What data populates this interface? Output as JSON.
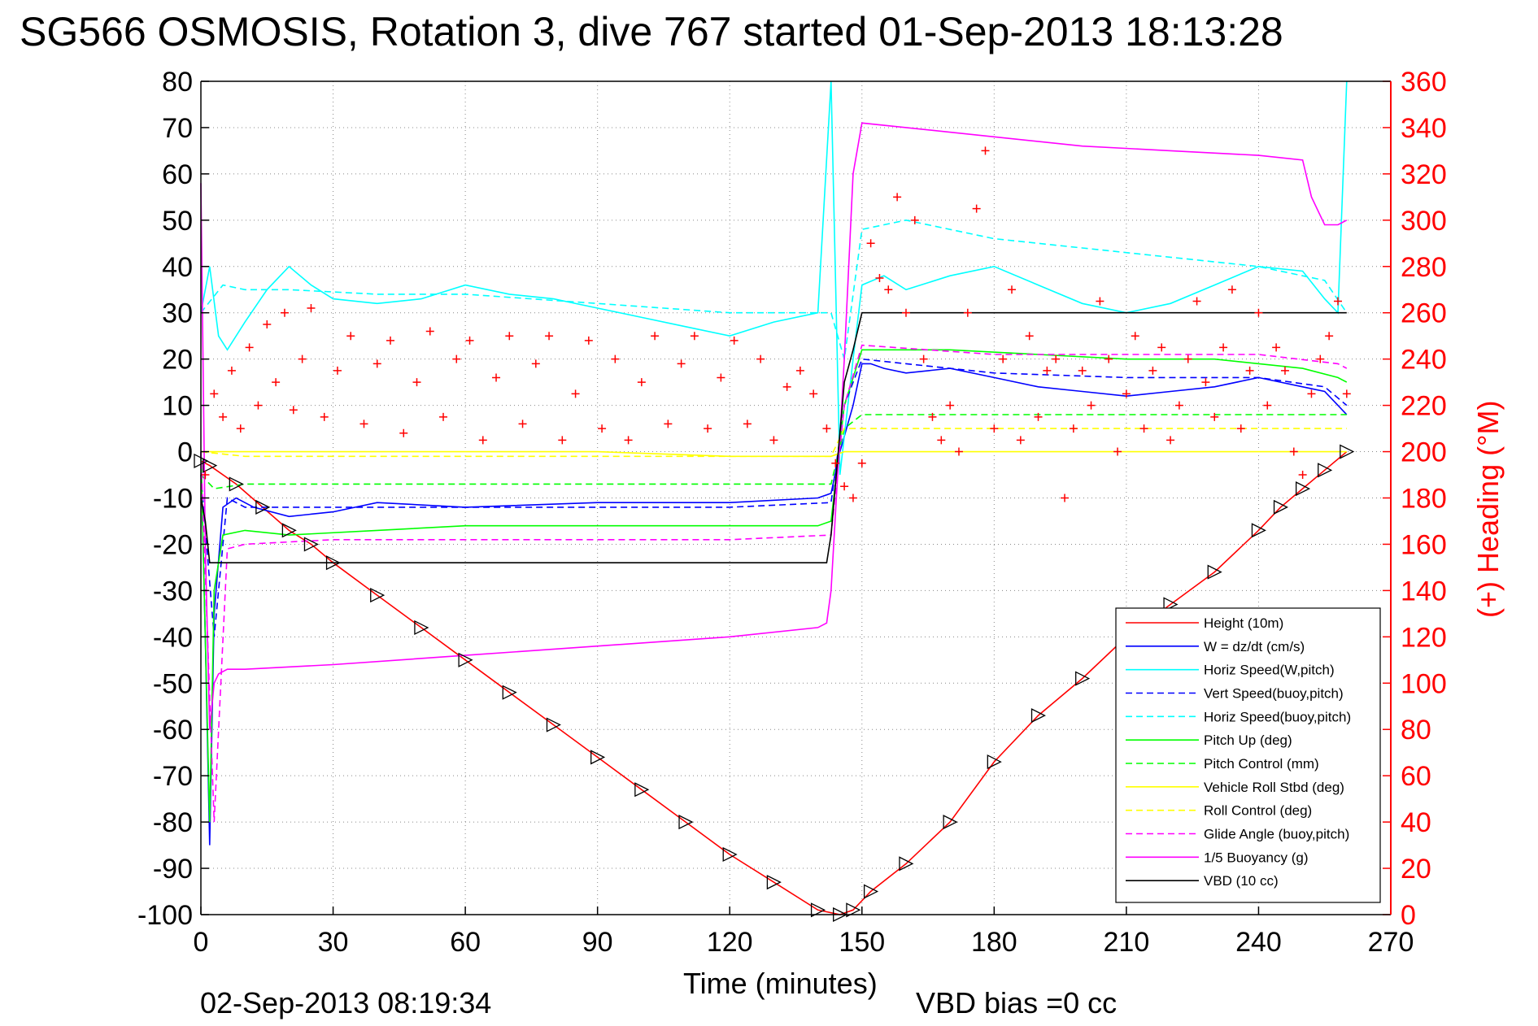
{
  "chart_data": {
    "type": "line",
    "title": "SG566 OSMOSIS, Rotation 3, dive 767 started 01-Sep-2013 18:13:28",
    "xlabel": "Time (minutes)",
    "ylabel_right": "(+) Heading (°M)",
    "footer_left": "02-Sep-2013 08:19:34",
    "footer_right": "VBD bias =0 cc",
    "xlim": [
      0,
      270
    ],
    "ylim": [
      -100,
      80
    ],
    "ylim_right": [
      0,
      360
    ],
    "xticks": [
      "0",
      "30",
      "60",
      "90",
      "120",
      "150",
      "180",
      "210",
      "240",
      "270"
    ],
    "yticks": [
      "80",
      "70",
      "60",
      "50",
      "40",
      "30",
      "20",
      "10",
      "0",
      "-10",
      "-20",
      "-30",
      "-40",
      "-50",
      "-60",
      "-70",
      "-80",
      "-90",
      "-100"
    ],
    "yticks_right": [
      "360",
      "340",
      "320",
      "300",
      "280",
      "260",
      "240",
      "220",
      "200",
      "180",
      "160",
      "140",
      "120",
      "100",
      "80",
      "60",
      "40",
      "20",
      "0"
    ],
    "grid": true,
    "legend_position": "lower-right",
    "series": [
      {
        "name": "Height (10m)",
        "color": "#ff0000",
        "style": "solid",
        "x": [
          0,
          2,
          8,
          14,
          20,
          25,
          30,
          40,
          50,
          60,
          70,
          80,
          90,
          100,
          110,
          120,
          130,
          140,
          145,
          148,
          152,
          160,
          170,
          180,
          190,
          200,
          210,
          220,
          230,
          240,
          245,
          250,
          255,
          260
        ],
        "y": [
          -2,
          -3,
          -7,
          -12,
          -17,
          -20,
          -24,
          -31,
          -38,
          -45,
          -52,
          -59,
          -66,
          -73,
          -80,
          -87,
          -93,
          -99,
          -100,
          -99,
          -95,
          -89,
          -80,
          -67,
          -57,
          -49,
          -40,
          -33,
          -26,
          -17,
          -12,
          -8,
          -4,
          0
        ]
      },
      {
        "name": "W = dz/dt (cm/s)",
        "color": "#0000ff",
        "style": "solid",
        "x": [
          0,
          1,
          2,
          3,
          5,
          8,
          12,
          20,
          30,
          40,
          60,
          90,
          120,
          140,
          143,
          145,
          148,
          150,
          152,
          155,
          160,
          170,
          180,
          190,
          200,
          210,
          220,
          230,
          240,
          250,
          255,
          258,
          260
        ],
        "y": [
          0,
          -40,
          -85,
          -35,
          -12,
          -10,
          -12,
          -14,
          -13,
          -11,
          -12,
          -11,
          -11,
          -10,
          -9,
          0,
          10,
          19,
          19,
          18,
          17,
          18,
          16,
          14,
          13,
          12,
          13,
          14,
          16,
          14,
          13,
          10,
          8
        ]
      },
      {
        "name": "Horiz Speed(W,pitch)",
        "color": "#00ffff",
        "style": "solid",
        "x": [
          0,
          2,
          4,
          6,
          10,
          15,
          20,
          25,
          30,
          40,
          50,
          60,
          70,
          80,
          90,
          100,
          110,
          120,
          130,
          140,
          143,
          145,
          148,
          150,
          155,
          160,
          170,
          180,
          190,
          200,
          210,
          220,
          230,
          240,
          250,
          255,
          258,
          260
        ],
        "y": [
          30,
          40,
          25,
          22,
          28,
          35,
          40,
          36,
          33,
          32,
          33,
          36,
          34,
          33,
          31,
          29,
          27,
          25,
          28,
          30,
          80,
          -5,
          20,
          36,
          38,
          35,
          38,
          40,
          36,
          32,
          30,
          32,
          36,
          40,
          39,
          33,
          30,
          80
        ]
      },
      {
        "name": "Vert Speed(buoy,pitch)",
        "color": "#0000ff",
        "style": "dashed",
        "x": [
          0,
          3,
          6,
          10,
          30,
          60,
          90,
          120,
          143,
          146,
          150,
          180,
          210,
          240,
          255,
          260
        ],
        "y": [
          -5,
          -40,
          -10,
          -12,
          -12,
          -12,
          -12,
          -12,
          -11,
          10,
          20,
          17,
          16,
          16,
          14,
          10
        ]
      },
      {
        "name": "Horiz Speed(buoy,pitch)",
        "color": "#00ffff",
        "style": "dashed",
        "x": [
          0,
          5,
          10,
          20,
          40,
          60,
          90,
          120,
          143,
          146,
          150,
          160,
          180,
          200,
          220,
          240,
          255,
          260
        ],
        "y": [
          30,
          36,
          35,
          35,
          34,
          34,
          32,
          30,
          30,
          20,
          48,
          50,
          46,
          44,
          42,
          40,
          37,
          30
        ]
      },
      {
        "name": "Pitch Up (deg)",
        "color": "#00ff00",
        "style": "solid",
        "x": [
          0,
          2,
          3,
          5,
          10,
          20,
          40,
          60,
          90,
          120,
          140,
          143,
          146,
          150,
          170,
          190,
          210,
          230,
          250,
          258,
          260
        ],
        "y": [
          0,
          -80,
          -30,
          -18,
          -17,
          -18,
          -17,
          -16,
          -16,
          -16,
          -16,
          -15,
          10,
          22,
          22,
          21,
          20,
          20,
          18,
          16,
          15
        ]
      },
      {
        "name": "Pitch Control (mm)",
        "color": "#00ff00",
        "style": "dashed",
        "x": [
          0,
          3,
          10,
          60,
          120,
          143,
          146,
          150,
          200,
          258,
          260
        ],
        "y": [
          -5,
          -8,
          -7,
          -7,
          -7,
          -7,
          5,
          8,
          8,
          8,
          8
        ]
      },
      {
        "name": "Vehicle Roll Stbd (deg)",
        "color": "#ffff00",
        "style": "solid",
        "x": [
          0,
          10,
          30,
          60,
          90,
          120,
          143,
          146,
          150,
          180,
          210,
          240,
          260
        ],
        "y": [
          0,
          0,
          0,
          0,
          0,
          -1,
          -1,
          0,
          0,
          0,
          0,
          0,
          0
        ]
      },
      {
        "name": "Roll Control (deg)",
        "color": "#ffff00",
        "style": "dashed",
        "x": [
          0,
          10,
          30,
          60,
          90,
          120,
          143,
          146,
          150,
          180,
          210,
          240,
          260
        ],
        "y": [
          0,
          -1,
          -1,
          -1,
          -1,
          -1,
          -1,
          5,
          5,
          5,
          5,
          5,
          5
        ]
      },
      {
        "name": "Glide Angle (buoy,pitch)",
        "color": "#ff00ff",
        "style": "dashed",
        "x": [
          0,
          3,
          6,
          10,
          30,
          60,
          90,
          120,
          143,
          146,
          150,
          180,
          210,
          240,
          258,
          260
        ],
        "y": [
          0,
          -80,
          -21,
          -20,
          -19,
          -19,
          -19,
          -19,
          -18,
          10,
          23,
          21,
          21,
          21,
          19,
          18
        ]
      },
      {
        "name": "1/5 Buoyancy (g)",
        "color": "#ff00ff",
        "style": "solid",
        "x": [
          0,
          1,
          2,
          3,
          4,
          6,
          10,
          30,
          60,
          90,
          120,
          140,
          142,
          143,
          146,
          148,
          150,
          160,
          180,
          200,
          220,
          240,
          250,
          252,
          255,
          258,
          260
        ],
        "y": [
          58,
          -20,
          -60,
          -50,
          -48,
          -47,
          -47,
          -46,
          -44,
          -42,
          -40,
          -38,
          -37,
          -30,
          20,
          60,
          71,
          70,
          68,
          66,
          65,
          64,
          63,
          55,
          49,
          49,
          50
        ]
      },
      {
        "name": "VBD (10 cc)",
        "color": "#000000",
        "style": "solid",
        "x": [
          0,
          1,
          2,
          5,
          20,
          60,
          100,
          142,
          143,
          146,
          148,
          150,
          200,
          260
        ],
        "y": [
          -10,
          -15,
          -24,
          -24,
          -24,
          -24,
          -24,
          -24,
          -18,
          15,
          22,
          30,
          30,
          30
        ]
      }
    ],
    "heading_markers": {
      "name": "Heading (°M)",
      "color": "#ff0000",
      "marker": "+",
      "axis": "right",
      "x": [
        1,
        3,
        5,
        7,
        9,
        11,
        13,
        15,
        17,
        19,
        21,
        23,
        25,
        28,
        31,
        34,
        37,
        40,
        43,
        46,
        49,
        52,
        55,
        58,
        61,
        64,
        67,
        70,
        73,
        76,
        79,
        82,
        85,
        88,
        91,
        94,
        97,
        100,
        103,
        106,
        109,
        112,
        115,
        118,
        121,
        124,
        127,
        130,
        133,
        136,
        139,
        142,
        144,
        146,
        148,
        150,
        152,
        154,
        156,
        158,
        160,
        162,
        164,
        166,
        168,
        170,
        172,
        174,
        176,
        178,
        180,
        182,
        184,
        186,
        188,
        190,
        192,
        194,
        196,
        198,
        200,
        202,
        204,
        206,
        208,
        210,
        212,
        214,
        216,
        218,
        220,
        222,
        224,
        226,
        228,
        230,
        232,
        234,
        236,
        238,
        240,
        242,
        244,
        246,
        248,
        250,
        252,
        254,
        256,
        258,
        260
      ],
      "y": [
        190,
        225,
        215,
        235,
        210,
        245,
        220,
        255,
        230,
        260,
        218,
        240,
        262,
        215,
        235,
        250,
        212,
        238,
        248,
        208,
        230,
        252,
        215,
        240,
        248,
        205,
        232,
        250,
        212,
        238,
        250,
        205,
        225,
        248,
        210,
        240,
        205,
        230,
        250,
        212,
        238,
        250,
        210,
        232,
        248,
        212,
        240,
        205,
        228,
        235,
        225,
        210,
        195,
        185,
        180,
        195,
        290,
        275,
        270,
        310,
        260,
        300,
        240,
        215,
        205,
        220,
        200,
        260,
        305,
        330,
        210,
        240,
        270,
        205,
        250,
        215,
        235,
        240,
        180,
        210,
        235,
        220,
        265,
        240,
        200,
        225,
        250,
        210,
        235,
        245,
        205,
        220,
        240,
        265,
        230,
        215,
        245,
        270,
        210,
        235,
        260,
        220,
        245,
        235,
        200,
        190,
        225,
        240,
        250,
        265,
        225
      ]
    },
    "legend": [
      "Height (10m)",
      "W = dz/dt (cm/s)",
      "Horiz Speed(W,pitch)",
      "Vert Speed(buoy,pitch)",
      "Horiz Speed(buoy,pitch)",
      "Pitch Up (deg)",
      "Pitch Control (mm)",
      "Vehicle Roll Stbd (deg)",
      "Roll Control (deg)",
      "Glide Angle (buoy,pitch)",
      "1/5 Buoyancy (g)",
      "VBD (10 cc)"
    ]
  }
}
